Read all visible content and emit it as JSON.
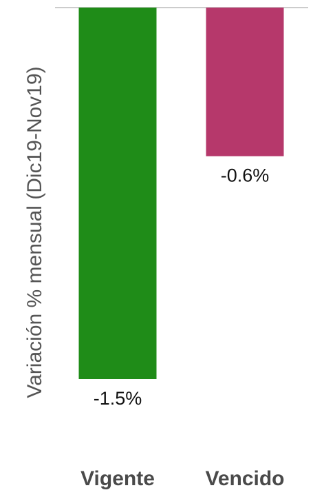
{
  "chart_data": {
    "type": "bar",
    "ylabel": "Variación % mensual (Dic19-Nov19)",
    "categories": [
      "Vigente",
      "Vencido"
    ],
    "values": [
      -1.5,
      -0.6
    ],
    "value_labels": [
      "-1.5%",
      "-0.6%"
    ],
    "colors": [
      "#1f8c18",
      "#b6386b"
    ],
    "ylim": [
      -1.5,
      0
    ],
    "grid": false,
    "legend": "none"
  }
}
